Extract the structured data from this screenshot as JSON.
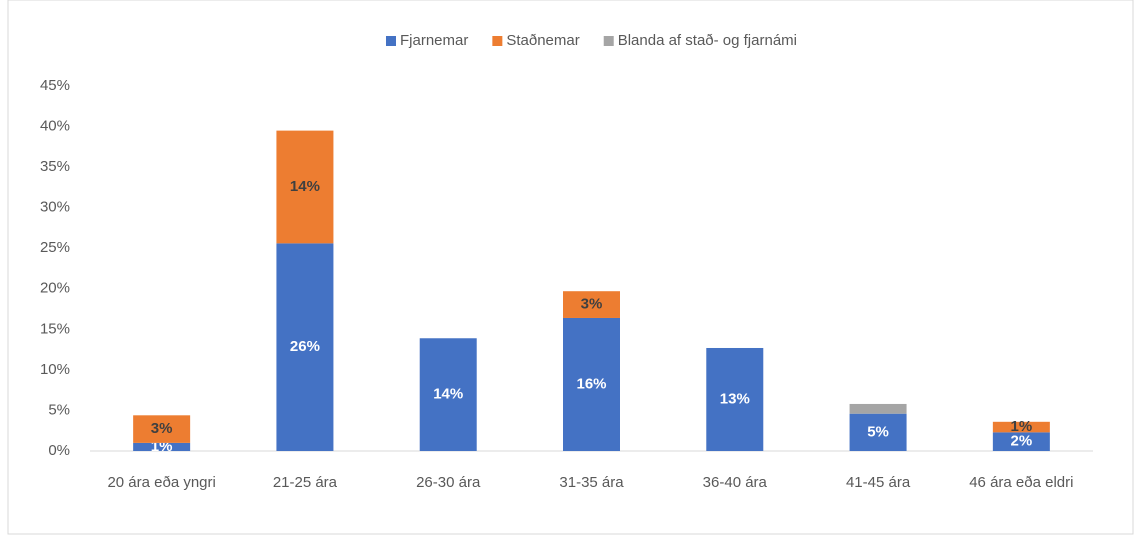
{
  "chart_data": {
    "type": "stacked_bar",
    "categories": [
      "20 ára eða yngri",
      "21-25 ára",
      "26-30 ára",
      "31-35 ára",
      "36-40 ára",
      "41-45 ára",
      "46 ára eða eldri"
    ],
    "series": [
      {
        "name": "Fjarnemar",
        "color": "#4472c4",
        "values": [
          1.0,
          25.6,
          13.9,
          16.4,
          12.7,
          4.6,
          2.3
        ],
        "value_labels": [
          "1%",
          "26%",
          "14%",
          "16%",
          "13%",
          "5%",
          "2%"
        ]
      },
      {
        "name": "Staðnemar",
        "color": "#ed7d31",
        "values": [
          3.4,
          13.9,
          null,
          3.3,
          null,
          null,
          1.3
        ],
        "value_labels": [
          "3%",
          "14%",
          null,
          "3%",
          null,
          null,
          "1%"
        ]
      },
      {
        "name": "Blanda af stað- og fjarnámi",
        "color": "#a5a5a5",
        "values": [
          null,
          null,
          null,
          null,
          null,
          1.2,
          null
        ]
      }
    ],
    "ylim": [
      0,
      45
    ],
    "yticks": [
      {
        "value": 0,
        "label": "0%"
      },
      {
        "value": 5,
        "label": "5%"
      },
      {
        "value": 10,
        "label": "10%"
      },
      {
        "value": 15,
        "label": "15%"
      },
      {
        "value": 20,
        "label": "20%"
      },
      {
        "value": 25,
        "label": "25%"
      },
      {
        "value": 30,
        "label": "30%"
      },
      {
        "value": 35,
        "label": "35%"
      },
      {
        "value": 40,
        "label": "40%"
      },
      {
        "value": 45,
        "label": "45%"
      }
    ],
    "legend": "top"
  }
}
